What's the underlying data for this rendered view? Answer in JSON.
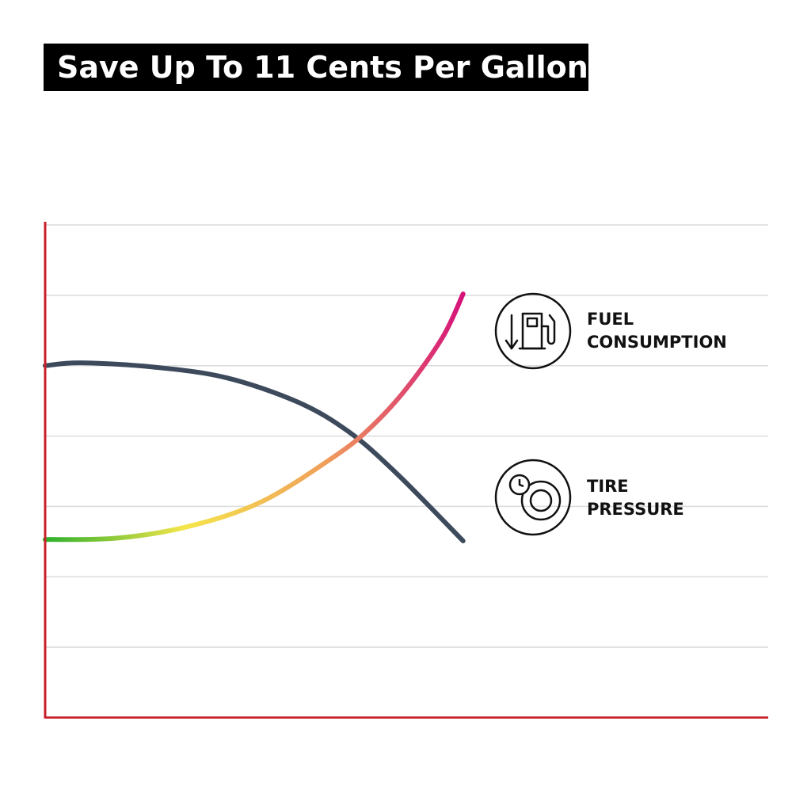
{
  "chart_data": {
    "type": "line",
    "title": "Save Up To 11 Cents Per Gallon",
    "xlim": [
      0,
      10
    ],
    "ylim": [
      0,
      7
    ],
    "yticks": [
      1,
      2,
      3,
      4,
      5,
      6,
      7
    ],
    "grid": true,
    "series": [
      {
        "name": "FUEL CONSUMPTION",
        "color": "#3d4a5c",
        "x": [
          0,
          0.5,
          1.5,
          2.5,
          3.5,
          4.2,
          4.85,
          5.78
        ],
        "values": [
          5.0,
          5.04,
          4.98,
          4.83,
          4.48,
          4.06,
          3.48,
          2.51
        ]
      },
      {
        "name": "TIRE PRESSURE",
        "colors": [
          "#2db02d",
          "#f5e64a",
          "#f0a05a",
          "#d4127a"
        ],
        "x": [
          0,
          1,
          2,
          3,
          4,
          4.5,
          5,
          5.5,
          5.78
        ],
        "values": [
          2.53,
          2.55,
          2.72,
          3.07,
          3.71,
          4.12,
          4.68,
          5.41,
          6.02
        ]
      }
    ]
  }
}
